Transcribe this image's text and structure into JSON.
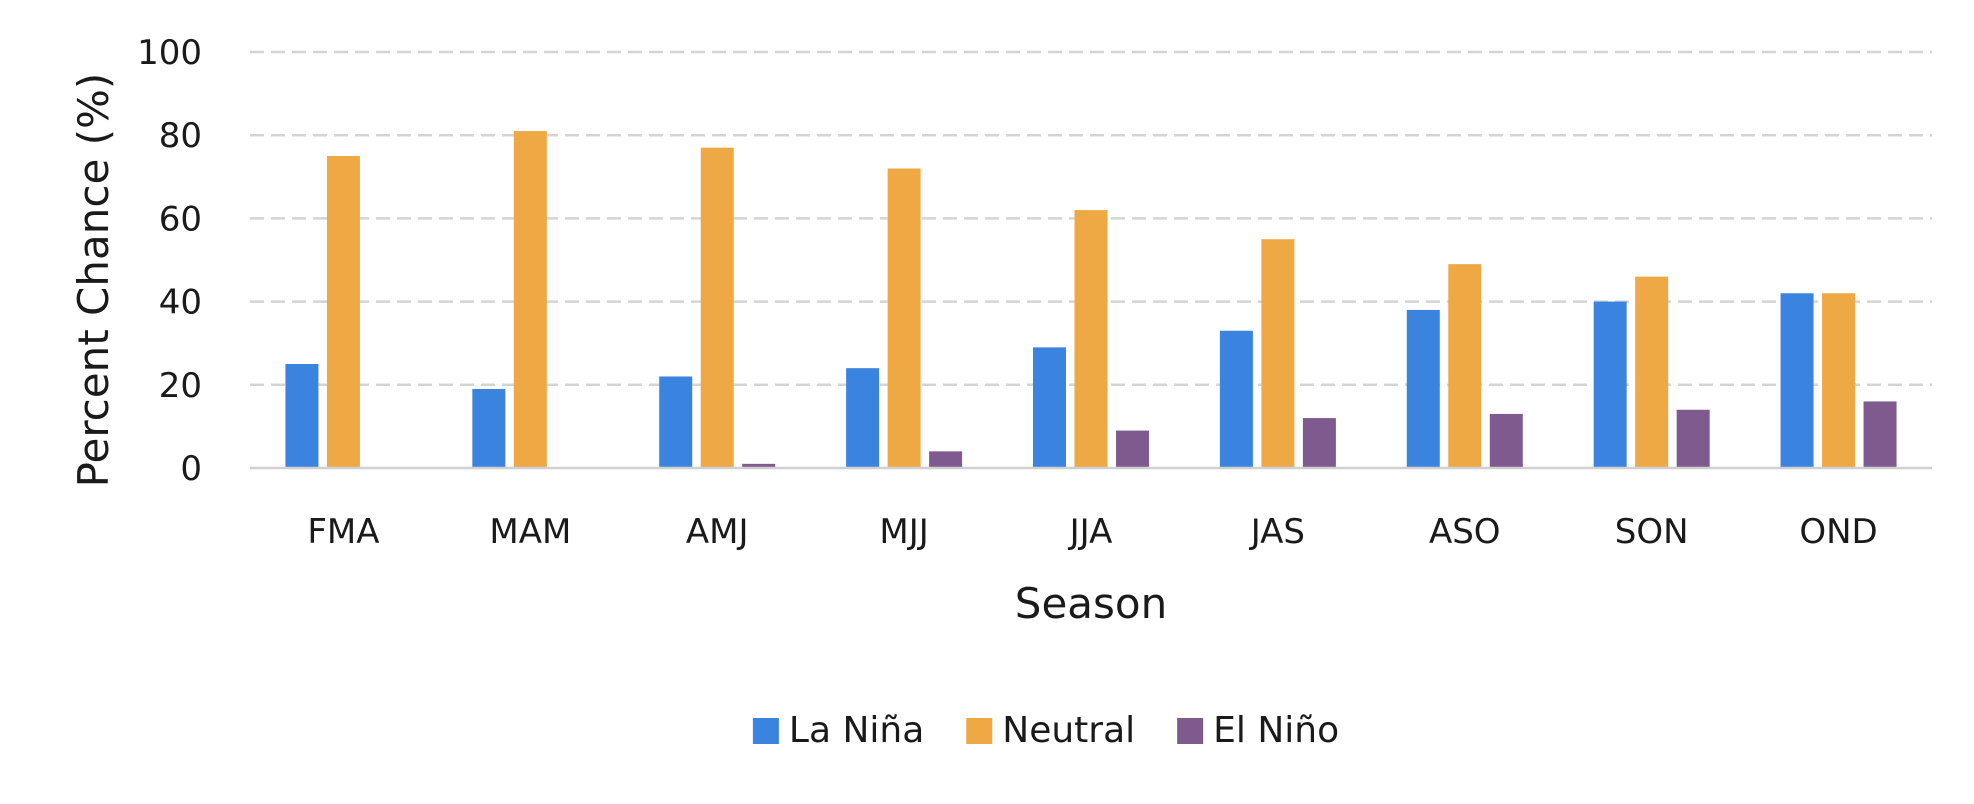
{
  "chart_data": {
    "type": "bar",
    "title": "",
    "xlabel": "Season",
    "ylabel": "Percent Chance (%)",
    "ylim": [
      0,
      100
    ],
    "yticks": [
      0,
      20,
      40,
      60,
      80,
      100
    ],
    "grid": "horizontal-dashed",
    "legend_position": "bottom-center",
    "categories": [
      "FMA",
      "MAM",
      "AMJ",
      "MJJ",
      "JJA",
      "JAS",
      "ASO",
      "SON",
      "OND"
    ],
    "series": [
      {
        "name": "La Niña",
        "color": "#3a84e0",
        "values": [
          25,
          19,
          22,
          24,
          29,
          33,
          38,
          40,
          42
        ]
      },
      {
        "name": "Neutral",
        "color": "#eea945",
        "values": [
          75,
          81,
          77,
          72,
          62,
          55,
          49,
          46,
          42
        ]
      },
      {
        "name": "El Niño",
        "color": "#7e5a8f",
        "values": [
          0,
          0,
          1,
          4,
          9,
          12,
          13,
          14,
          16
        ]
      }
    ]
  }
}
